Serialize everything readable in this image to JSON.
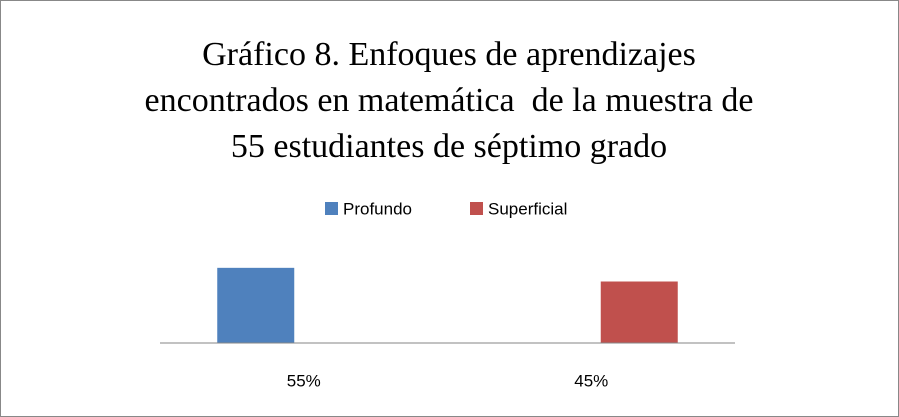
{
  "chart_data": {
    "type": "bar",
    "title": [
      "Gráfico 8. Enfoques de aprendizajes",
      "encontrados en matemática  de la muestra de",
      "55 estudiantes de séptimo grado"
    ],
    "categories": [
      "55%",
      "45%"
    ],
    "series": [
      {
        "name": "Profundo",
        "color": "#4f81bd",
        "values": [
          55,
          null
        ]
      },
      {
        "name": "Superficial",
        "color": "#c0504d",
        "values": [
          null,
          45
        ]
      }
    ],
    "ylim": [
      0,
      60
    ],
    "legend": "top"
  }
}
